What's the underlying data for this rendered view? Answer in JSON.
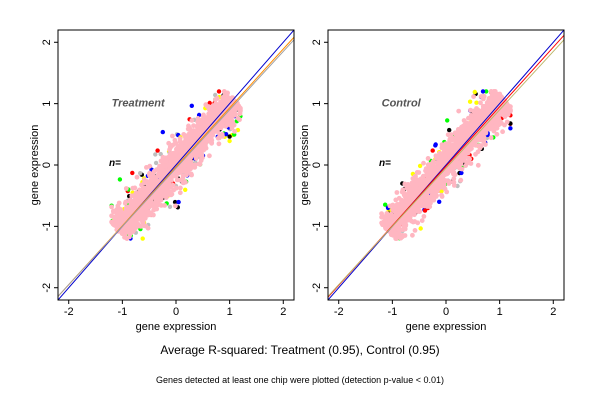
{
  "chart_data": [
    {
      "type": "scatter",
      "panel_label": "Treatment",
      "n_label": "n=",
      "xlabel": "gene expression",
      "ylabel": "gene expression",
      "xlim": [
        -2.2,
        2.2
      ],
      "ylim": [
        -2.2,
        2.2
      ],
      "xticks": [
        -2,
        -1,
        0,
        1,
        2
      ],
      "yticks": [
        -2,
        -1,
        0,
        1,
        2
      ],
      "grid": false,
      "point_cloud": {
        "x_range": [
          -1.2,
          1.2
        ],
        "y_range": [
          -1.2,
          1.2
        ],
        "main_color": "#ffb6c1",
        "outlier_colors": [
          "#00ff00",
          "#ff0000",
          "#0000ff",
          "#ffff00",
          "#bebebe",
          "#000000"
        ]
      },
      "lines": [
        {
          "slope": 1.0,
          "intercept": 0.0,
          "color": "#0000cd"
        },
        {
          "slope": 0.96,
          "intercept": -0.03,
          "color": "#ff8c00"
        },
        {
          "slope": 0.95,
          "intercept": -0.05,
          "color": "#a0a0a0"
        }
      ]
    },
    {
      "type": "scatter",
      "panel_label": "Control",
      "n_label": "n=",
      "xlabel": "gene expression",
      "ylabel": "gene expression",
      "xlim": [
        -2.2,
        2.2
      ],
      "ylim": [
        -2.2,
        2.2
      ],
      "xticks": [
        -2,
        -1,
        0,
        1,
        2
      ],
      "yticks": [
        -2,
        -1,
        0,
        1,
        2
      ],
      "grid": false,
      "point_cloud": {
        "x_range": [
          -1.2,
          1.2
        ],
        "y_range": [
          -1.2,
          1.2
        ],
        "main_color": "#ffb6c1",
        "outlier_colors": [
          "#00ff00",
          "#ff0000",
          "#0000ff",
          "#ffff00",
          "#bebebe",
          "#000000"
        ]
      },
      "lines": [
        {
          "slope": 1.0,
          "intercept": 0.0,
          "color": "#0000cd"
        },
        {
          "slope": 0.97,
          "intercept": -0.02,
          "color": "#ff0000"
        },
        {
          "slope": 0.95,
          "intercept": -0.05,
          "color": "#bdb76b"
        }
      ]
    }
  ],
  "caption_main": "Average R-squared: Treatment (0.95), Control (0.95)",
  "caption_sub": "Genes detected at least one chip were plotted (detection p-value < 0.01)"
}
